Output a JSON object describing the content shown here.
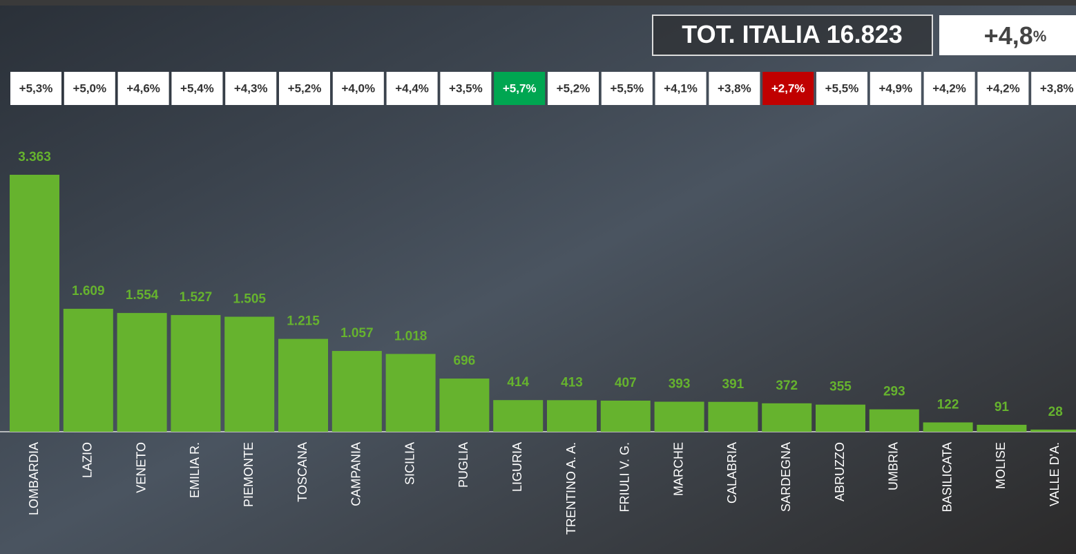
{
  "chart_data": {
    "type": "bar",
    "categories": [
      "LOMBARDIA",
      "LAZIO",
      "VENETO",
      "EMILIA R.",
      "PIEMONTE",
      "TOSCANA",
      "CAMPANIA",
      "SICILIA",
      "PUGLIA",
      "LIGURIA",
      "TRENTINO A. A.",
      "FRIULI V. G.",
      "MARCHE",
      "CALABRIA",
      "SARDEGNA",
      "ABRUZZO",
      "UMBRIA",
      "BASILICATA",
      "MOLISE",
      "VALLE D'A."
    ],
    "values": [
      3363,
      1609,
      1554,
      1527,
      1505,
      1215,
      1057,
      1018,
      696,
      414,
      413,
      407,
      393,
      391,
      372,
      355,
      293,
      122,
      91,
      28
    ],
    "value_labels": [
      "3.363",
      "1.609",
      "1.554",
      "1.527",
      "1.505",
      "1.215",
      "1.057",
      "1.018",
      "696",
      "414",
      "413",
      "407",
      "393",
      "391",
      "372",
      "355",
      "293",
      "122",
      "91",
      "28"
    ],
    "changes": [
      5.3,
      5.0,
      4.6,
      5.4,
      4.3,
      5.2,
      4.0,
      4.4,
      3.5,
      5.7,
      5.2,
      5.5,
      4.1,
      3.8,
      2.7,
      5.5,
      4.9,
      4.2,
      4.2,
      3.8
    ],
    "change_labels": [
      "+5,3%",
      "+5,0%",
      "+4,6%",
      "+5,4%",
      "+4,3%",
      "+5,2%",
      "+4,0%",
      "+4,4%",
      "+3,5%",
      "+5,7%",
      "+5,2%",
      "+5,5%",
      "+4,1%",
      "+3,8%",
      "+2,7%",
      "+5,5%",
      "+4,9%",
      "+4,2%",
      "+4,2%",
      "+3,8%"
    ],
    "change_colors": [
      "#ffffff",
      "#ffffff",
      "#ffffff",
      "#ffffff",
      "#ffffff",
      "#ffffff",
      "#ffffff",
      "#ffffff",
      "#ffffff",
      "#00a651",
      "#ffffff",
      "#ffffff",
      "#ffffff",
      "#ffffff",
      "#c00000",
      "#ffffff",
      "#ffffff",
      "#ffffff",
      "#ffffff",
      "#ffffff"
    ],
    "color": "#66b32e",
    "total": {
      "label": "TOT. ITALIA",
      "value": 16823,
      "value_label": "16.823",
      "change": 4.8,
      "change_label": "+4,8",
      "unit": "%"
    }
  }
}
